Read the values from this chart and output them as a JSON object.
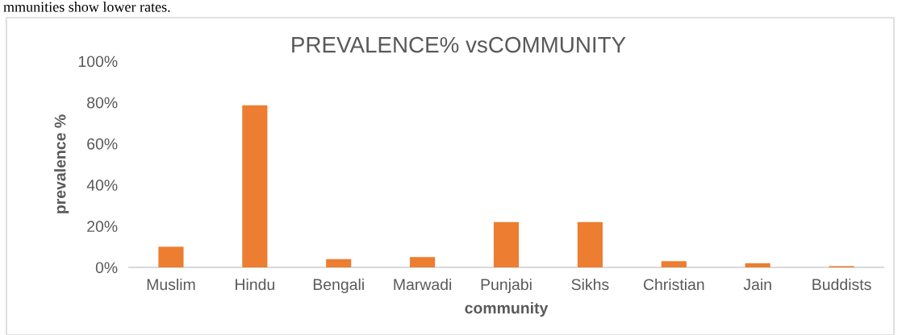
{
  "chart_data": {
    "type": "bar",
    "title": "PREVALENCE% vsCOMMUNITY",
    "xlabel": "community",
    "ylabel": "prevalence %",
    "annotations": [
      "mmunities show lower rates."
    ],
    "categories": [
      "Muslim",
      "Hindu",
      "Bengali",
      "Marwadi",
      "Punjabi",
      "Sikhs",
      "Christian",
      "Jain",
      "Buddists"
    ],
    "values": [
      10,
      78.6,
      4,
      5,
      22,
      22,
      3,
      2,
      0.6
    ],
    "color": "#ed7d31",
    "ylim": [
      0,
      100
    ],
    "yticks": [
      {
        "value": 0,
        "label": "0%"
      },
      {
        "value": 20,
        "label": "20%"
      },
      {
        "value": 40,
        "label": "40%"
      },
      {
        "value": 60,
        "label": "60%"
      },
      {
        "value": 80,
        "label": "80%"
      },
      {
        "value": 100,
        "label": "100%"
      }
    ],
    "grid": false,
    "legend": false
  }
}
